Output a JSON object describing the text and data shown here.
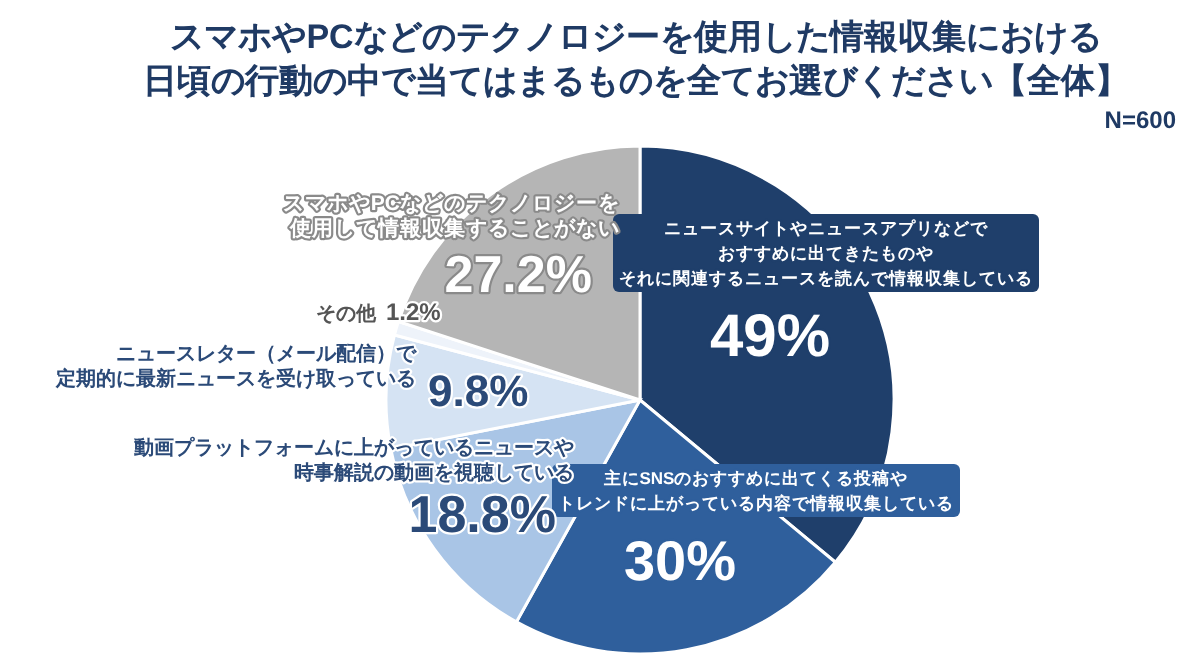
{
  "chart_data": {
    "type": "pie",
    "title": "スマホやPCなどのテクノロジーを使用した情報収集における日頃の行動の中で当てはまるものを全てお選びください【全体】",
    "subtitle": "N=600",
    "categories": [
      "ニュースサイトやニュースアプリなどでおすすめに出てきたものやそれに関連するニュースを読んで情報収集している",
      "主にSNSのおすすめに出てくる投稿やトレンドに上がっている内容で情報収集している",
      "動画プラットフォームに上がっているニュースや時事解説の動画を視聴している",
      "ニュースレター（メール配信）で定期的に最新ニュースを受け取っている",
      "その他",
      "スマホやPCなどのテクノロジーを使用して情報収集することがない"
    ],
    "values": [
      49,
      30,
      18.8,
      9.8,
      1.2,
      27.2
    ],
    "value_labels": [
      "49%",
      "30%",
      "18.8%",
      "9.8%",
      "1.2%",
      "27.2%"
    ],
    "colors": [
      "#1f3f6b",
      "#2f5f9c",
      "#a9c5e6",
      "#d5e3f3",
      "#eef3fa",
      "#b5b5b5"
    ]
  }
}
